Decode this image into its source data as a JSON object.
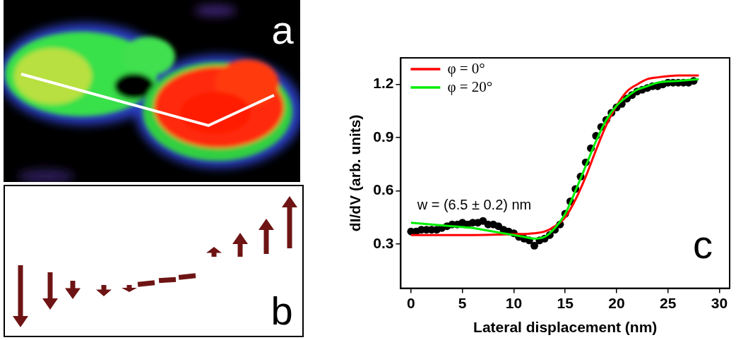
{
  "image_panel": {
    "label": "a"
  },
  "diagram_panel": {
    "label": "b"
  },
  "chart_data": {
    "type": "scatter",
    "panel_label": "c",
    "x_label": "Lateral displacement (nm)",
    "y_label": "dI/dV (arb. units)",
    "annotation": "w = (6.5 ± 0.2) nm",
    "xlim": [
      -1,
      31
    ],
    "xticks": [
      0,
      5,
      10,
      15,
      20,
      25,
      30
    ],
    "ylim": [
      0.05,
      1.35
    ],
    "yticks": [
      0.3,
      0.6,
      0.9,
      1.2
    ],
    "grid": false,
    "legend": "upper left",
    "series": [
      {
        "type": "scatter",
        "marker": "circle",
        "color": "#000000",
        "x": [
          0,
          0.5,
          1,
          1.5,
          2,
          2.5,
          3,
          3.5,
          4,
          4.5,
          5,
          5.5,
          6,
          6.5,
          7,
          7.5,
          8,
          8.5,
          9,
          9.5,
          10,
          10.5,
          11,
          11.5,
          12,
          12.5,
          13,
          13.5,
          14,
          14.5,
          15,
          15.5,
          16,
          16.5,
          17,
          17.5,
          18,
          18.5,
          19,
          19.5,
          20,
          20.5,
          21,
          21.5,
          22,
          22.5,
          23,
          23.5,
          24,
          24.5,
          25,
          25.5,
          26,
          26.5,
          27,
          27.5
        ],
        "values": [
          0.37,
          0.37,
          0.38,
          0.38,
          0.38,
          0.38,
          0.39,
          0.4,
          0.41,
          0.41,
          0.42,
          0.41,
          0.42,
          0.42,
          0.43,
          0.41,
          0.41,
          0.4,
          0.38,
          0.37,
          0.36,
          0.34,
          0.33,
          0.32,
          0.29,
          0.32,
          0.33,
          0.35,
          0.38,
          0.41,
          0.47,
          0.54,
          0.61,
          0.68,
          0.76,
          0.84,
          0.91,
          0.96,
          1.0,
          1.04,
          1.07,
          1.09,
          1.12,
          1.14,
          1.16,
          1.17,
          1.18,
          1.19,
          1.19,
          1.2,
          1.21,
          1.21,
          1.21,
          1.21,
          1.21,
          1.22
        ]
      },
      {
        "name": "φ = 0°",
        "type": "line",
        "line_style": "solid",
        "color": "#ff0000",
        "x": [
          0,
          5,
          10,
          12,
          13,
          14,
          15,
          16,
          17,
          18,
          19,
          20,
          21,
          22,
          23,
          24,
          26,
          28
        ],
        "values": [
          0.35,
          0.35,
          0.355,
          0.36,
          0.37,
          0.4,
          0.45,
          0.55,
          0.68,
          0.83,
          0.97,
          1.08,
          1.16,
          1.2,
          1.23,
          1.24,
          1.25,
          1.25
        ]
      },
      {
        "name": "φ = 20°",
        "type": "line",
        "line_style": "solid",
        "color": "#00ee00",
        "x": [
          0,
          2,
          4,
          6,
          8,
          10,
          11,
          12,
          13,
          14,
          15,
          16,
          17,
          18,
          19,
          20,
          21,
          22,
          23,
          24,
          26,
          28
        ],
        "values": [
          0.42,
          0.41,
          0.4,
          0.39,
          0.37,
          0.35,
          0.34,
          0.33,
          0.34,
          0.39,
          0.47,
          0.6,
          0.74,
          0.88,
          1.0,
          1.08,
          1.13,
          1.17,
          1.19,
          1.21,
          1.22,
          1.23
        ]
      }
    ]
  }
}
